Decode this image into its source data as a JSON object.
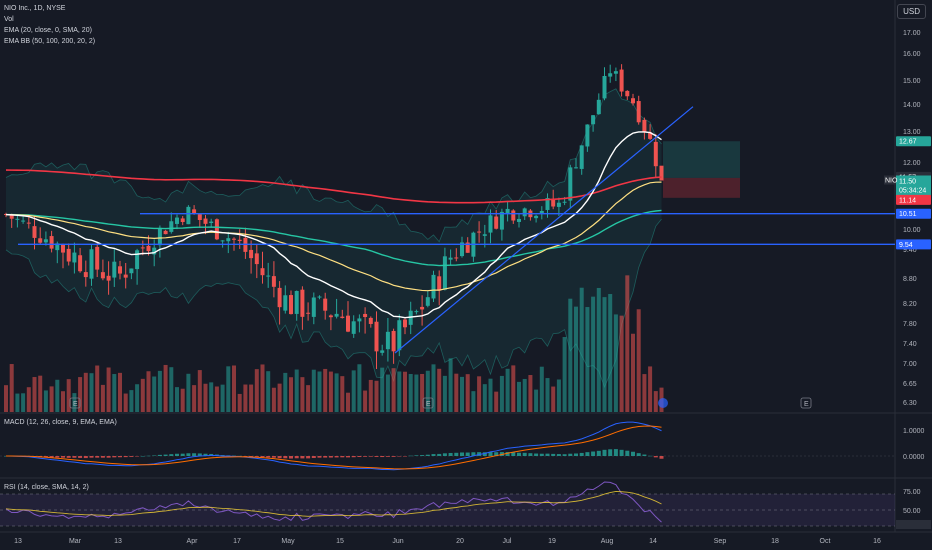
{
  "legend": {
    "symbol_line": "NIO Inc., 1D, NYSE",
    "vol": "Vol",
    "ema": "EMA (20, close, 0, SMA, 20)",
    "emabb": "EMA BB (50, 100, 200, 20, 2)"
  },
  "currency_button": "USD",
  "macd_title": "MACD (12, 26, close, 9, EMA, EMA)",
  "rsi_title": "RSI (14, close, SMA, 14, 2)",
  "price_axis": [
    "17.00",
    "16.00",
    "15.00",
    "14.00",
    "13.00",
    "12.00",
    "11.00",
    "10.00",
    "9.40",
    "8.80",
    "8.20",
    "7.80",
    "7.40",
    "7.00",
    "6.65",
    "6.30"
  ],
  "macd_axis": [
    "1.0000",
    "0.0000"
  ],
  "rsi_axis": [
    "75.00",
    "50.00",
    "25.00"
  ],
  "time_axis": [
    "13",
    "Mar",
    "13",
    "Apr",
    "17",
    "May",
    "15",
    "Jun",
    "20",
    "Jul",
    "19",
    "Aug",
    "14",
    "Sep",
    "18",
    "Oct",
    "16"
  ],
  "price_tags": {
    "target": "12.67",
    "level_1157": "11.57",
    "symbol": "NIO",
    "last": "11.50",
    "countdown": "05:34:24",
    "stop": "11.14",
    "h_line_1": "10.51",
    "h_line_2": "9.54"
  },
  "event_markers": [
    "E",
    "E",
    "E"
  ],
  "colors": {
    "background": "#161a25",
    "up": "#26a69a",
    "down": "#ef5350",
    "ema20": "#ffffff",
    "ema50": "#2196f3",
    "ema100": "#26c6a4",
    "ema200": "#f23645",
    "hline": "#2962ff"
  },
  "chart_data": {
    "type": "candlestick",
    "title": "NIO Inc., 1D, NYSE",
    "ylim": [
      6.3,
      17.0
    ],
    "close_samples": [
      {
        "x": "Feb 13",
        "y": 10.6
      },
      {
        "x": "Mar 1",
        "y": 9.3
      },
      {
        "x": "Mar 13",
        "y": 8.8
      },
      {
        "x": "Apr 3",
        "y": 10.6
      },
      {
        "x": "Apr 17",
        "y": 9.6
      },
      {
        "x": "May 1",
        "y": 8.2
      },
      {
        "x": "May 15",
        "y": 8.0
      },
      {
        "x": "Jun 1",
        "y": 7.3
      },
      {
        "x": "Jun 14",
        "y": 8.0
      },
      {
        "x": "Jun 20",
        "y": 9.3
      },
      {
        "x": "Jul 1",
        "y": 10.6
      },
      {
        "x": "Jul 19",
        "y": 10.8
      },
      {
        "x": "Jul 28",
        "y": 13.3
      },
      {
        "x": "Aug 3",
        "y": 15.4
      },
      {
        "x": "Aug 8",
        "y": 14.0
      },
      {
        "x": "Aug 14",
        "y": 11.5
      }
    ],
    "horizontal_lines": [
      10.51,
      9.54
    ],
    "last_price": 11.5
  }
}
